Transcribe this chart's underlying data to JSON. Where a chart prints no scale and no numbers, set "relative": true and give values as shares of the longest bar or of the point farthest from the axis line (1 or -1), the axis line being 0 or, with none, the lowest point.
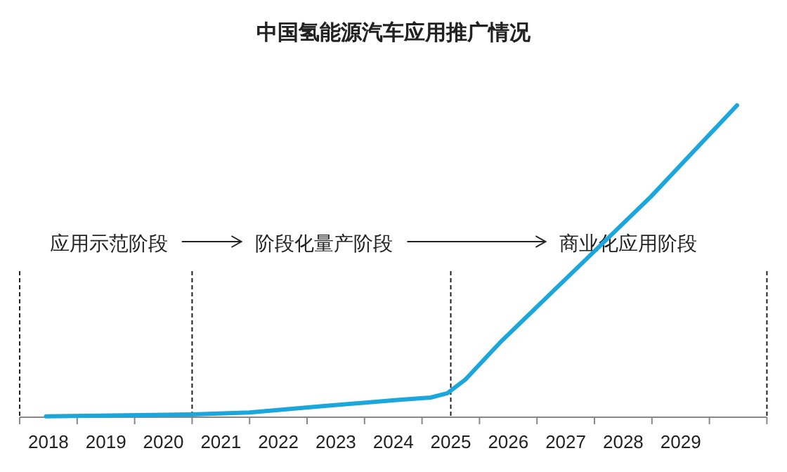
{
  "chart_data": {
    "type": "line",
    "title": "中国氢能源汽车应用推广情况",
    "relative": true,
    "x": [
      2017.96,
      2020.5,
      2021.5,
      2022.8,
      2024.1,
      2024.65,
      2024.94,
      2025.25,
      2025.86,
      2028.48,
      2029.98
    ],
    "series": [
      {
        "color": "#1ba6dc",
        "values": [
          0.003,
          0.009,
          0.015,
          0.036,
          0.056,
          0.063,
          0.077,
          0.12,
          0.24,
          0.707,
          1
        ]
      }
    ],
    "xlim": [
      2017.5,
      2030.5
    ],
    "xticks": [
      {
        "value": 2017.5,
        "label": null
      },
      {
        "value": 2018,
        "label": "2018"
      },
      {
        "value": 2018.5,
        "label": null
      },
      {
        "value": 2019,
        "label": "2019"
      },
      {
        "value": 2019.5,
        "label": null
      },
      {
        "value": 2020,
        "label": "2020"
      },
      {
        "value": 2020.5,
        "label": null
      },
      {
        "value": 2021,
        "label": "2021"
      },
      {
        "value": 2021.5,
        "label": null
      },
      {
        "value": 2022,
        "label": "2022"
      },
      {
        "value": 2022.5,
        "label": null
      },
      {
        "value": 2023,
        "label": "2023"
      },
      {
        "value": 2023.5,
        "label": null
      },
      {
        "value": 2024,
        "label": "2024"
      },
      {
        "value": 2024.5,
        "label": null
      },
      {
        "value": 2025,
        "label": "2025"
      },
      {
        "value": 2025.5,
        "label": null
      },
      {
        "value": 2026,
        "label": "2026"
      },
      {
        "value": 2026.5,
        "label": null
      },
      {
        "value": 2027,
        "label": "2027"
      },
      {
        "value": 2027.5,
        "label": null
      },
      {
        "value": 2028,
        "label": "2028"
      },
      {
        "value": 2028.5,
        "label": null
      },
      {
        "value": 2029,
        "label": "2029"
      },
      {
        "value": 2029.5,
        "label": null
      },
      {
        "value": 2030.5,
        "label": null
      }
    ],
    "ref_lines": [
      {
        "axis": "x",
        "value": 2017.5,
        "line_style": "dashed"
      },
      {
        "axis": "x",
        "value": 2020.5,
        "line_style": "dashed"
      },
      {
        "axis": "x",
        "value": 2025,
        "line_style": "dashed"
      },
      {
        "axis": "x",
        "value": 2030.5,
        "line_style": "dashed"
      }
    ],
    "annotations": [
      "应用示范阶段",
      "阶段化量产阶段",
      "商业化应用阶段"
    ],
    "marker": "none",
    "line_style": "solid"
  }
}
